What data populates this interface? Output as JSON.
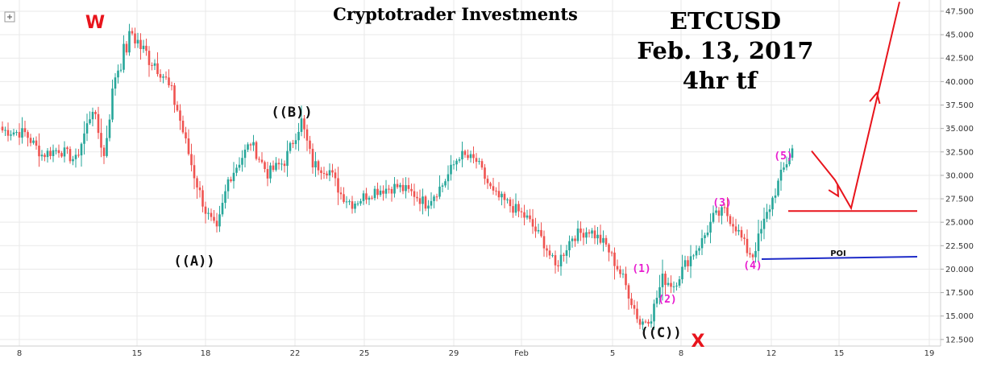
{
  "header": {
    "brand": "Cryptotrader Investments",
    "symbol": "ETCUSD",
    "date": "Feb. 13, 2017",
    "timeframe": "4hr tf"
  },
  "colors": {
    "up": "#26a69a",
    "down": "#ef5350",
    "projection": "#e8141c",
    "poi_line": "#1e2bc8",
    "subwave_label": "#e81ccf",
    "grid": "#e9e9e9"
  },
  "icons": {
    "crosshair": "plus-icon"
  },
  "annotations": {
    "w_mark": "W",
    "x_mark": "X",
    "poi": "POI"
  },
  "chart_data": {
    "type": "candlestick",
    "title": "ETCUSD",
    "subtitle": "Feb. 13, 2017",
    "timeframe": "4hr tf",
    "x_ticks": [
      "8",
      "15",
      "18",
      "22",
      "25",
      "29",
      "Feb",
      "5",
      "8",
      "12",
      "15",
      "19"
    ],
    "y_ticks": [
      "47.500",
      "45.000",
      "42.500",
      "40.000",
      "37.500",
      "35.000",
      "32.500",
      "30.000",
      "27.500",
      "25.000",
      "22.500",
      "20.000",
      "17.500",
      "15.000",
      "12.500"
    ],
    "ylim": [
      11.8,
      48.7
    ],
    "price_path": [
      [
        0,
        34.8
      ],
      [
        8,
        34.5
      ],
      [
        14,
        32.2
      ],
      [
        20,
        32.8
      ],
      [
        26,
        31.6
      ],
      [
        32,
        37.2
      ],
      [
        36,
        32.0
      ],
      [
        40,
        40.8
      ],
      [
        46,
        45.2
      ],
      [
        50,
        43.2
      ],
      [
        56,
        41.5
      ],
      [
        62,
        37.0
      ],
      [
        68,
        30.0
      ],
      [
        72,
        26.2
      ],
      [
        76,
        24.0
      ],
      [
        80,
        29.5
      ],
      [
        88,
        33.5
      ],
      [
        94,
        30.2
      ],
      [
        100,
        31.5
      ],
      [
        106,
        35.8
      ],
      [
        110,
        31.2
      ],
      [
        116,
        30.5
      ],
      [
        120,
        28.0
      ],
      [
        124,
        27.0
      ],
      [
        132,
        28.4
      ],
      [
        140,
        28.8
      ],
      [
        146,
        28.0
      ],
      [
        150,
        27.0
      ],
      [
        156,
        29.0
      ],
      [
        162,
        32.2
      ],
      [
        168,
        31.5
      ],
      [
        174,
        28.0
      ],
      [
        180,
        26.8
      ],
      [
        186,
        25.4
      ],
      [
        192,
        22.8
      ],
      [
        196,
        20.2
      ],
      [
        202,
        23.5
      ],
      [
        208,
        24.2
      ],
      [
        214,
        22.5
      ],
      [
        220,
        19.0
      ],
      [
        226,
        14.2
      ],
      [
        230,
        15.0
      ],
      [
        234,
        19.0
      ],
      [
        238,
        18.3
      ],
      [
        242,
        20.5
      ],
      [
        248,
        23.0
      ],
      [
        252,
        25.5
      ],
      [
        256,
        26.2
      ],
      [
        260,
        24.5
      ],
      [
        264,
        22.0
      ],
      [
        266,
        21.5
      ],
      [
        270,
        25.0
      ],
      [
        276,
        30.0
      ],
      [
        280,
        32.8
      ]
    ],
    "wave_labels": [
      {
        "text": "W",
        "x_index": 46,
        "kind": "corner"
      },
      {
        "text": "((A))",
        "x_index": 76,
        "kind": "primary"
      },
      {
        "text": "((B))",
        "x_index": 106,
        "kind": "primary"
      },
      {
        "text": "((C))",
        "x_index": 226,
        "kind": "primary"
      },
      {
        "text": "X",
        "x_index": 242,
        "kind": "corner"
      },
      {
        "text": "(1)",
        "x_index": 232,
        "kind": "sub"
      },
      {
        "text": "(2)",
        "x_index": 238,
        "kind": "sub"
      },
      {
        "text": "(3)",
        "x_index": 256,
        "kind": "sub"
      },
      {
        "text": "(4)",
        "x_index": 266,
        "kind": "sub"
      },
      {
        "text": "(5)",
        "x_index": 280,
        "kind": "sub"
      }
    ],
    "levels": [
      {
        "name": "target",
        "value": 26.2,
        "color": "#e8141c"
      },
      {
        "name": "POI",
        "value": 21.2,
        "color": "#1e2bc8"
      }
    ],
    "projection_path": [
      [
        32.6,
        0
      ],
      [
        29.5,
        1
      ],
      [
        26.5,
        2
      ],
      [
        48.5,
        3
      ]
    ],
    "grid": true,
    "legend": "none"
  }
}
